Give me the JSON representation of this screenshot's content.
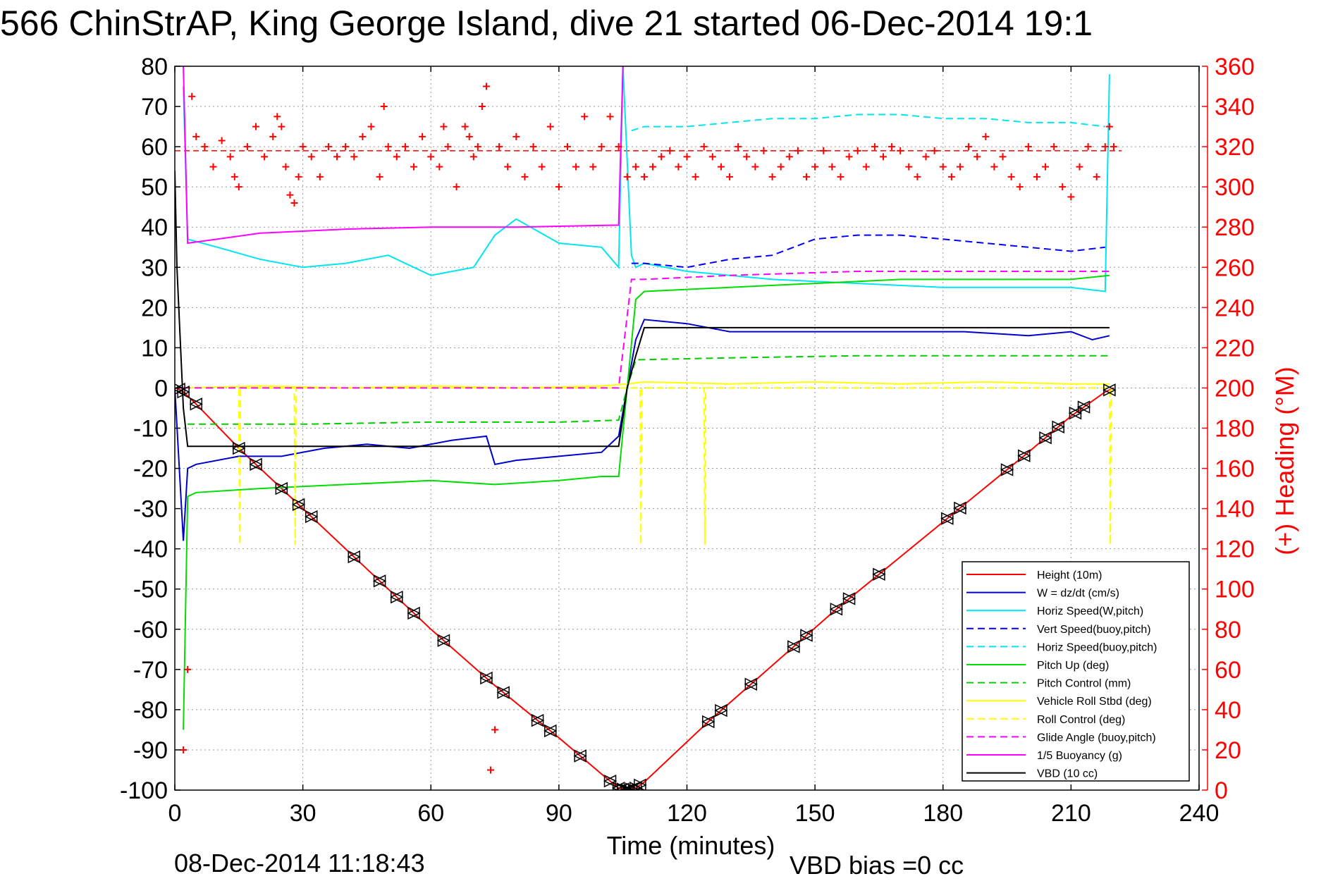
{
  "title": "566 ChinStrAP, King George Island, dive 21 started 06-Dec-2014 19:1",
  "footer_left": "08-Dec-2014 11:18:43",
  "footer_right": "VBD bias =0 cc",
  "chart_data": {
    "type": "line",
    "xlabel": "Time (minutes)",
    "ylabel": "",
    "y2label": "(+) Heading (°M)",
    "xlim": [
      0,
      240
    ],
    "ylim": [
      -100,
      80
    ],
    "y2lim": [
      0,
      360
    ],
    "xticks": [
      0,
      30,
      60,
      90,
      120,
      150,
      180,
      210,
      240
    ],
    "yticks": [
      -100,
      -90,
      -80,
      -70,
      -60,
      -50,
      -40,
      -30,
      -20,
      -10,
      0,
      10,
      20,
      30,
      40,
      50,
      60,
      70,
      80
    ],
    "y2ticks": [
      0,
      20,
      40,
      60,
      80,
      100,
      120,
      140,
      160,
      180,
      200,
      220,
      240,
      260,
      280,
      300,
      320,
      340,
      360
    ],
    "grid": true,
    "legend_position": "bottom-right",
    "colors": {
      "height": "#ff0000",
      "w": "#0000cc",
      "horiz_speed": "#00e5ee",
      "vert_speed_buoy": "#0000ff",
      "horiz_speed_buoy": "#00e5ee",
      "pitch_up": "#00dd00",
      "pitch_control": "#00cc00",
      "roll": "#ffff00",
      "roll_control": "#ffff00",
      "glide_angle": "#ff00ff",
      "buoyancy": "#ff00ff",
      "vbd": "#000000",
      "heading": "#ff0000",
      "axis_right": "#ff0000"
    },
    "series": [
      {
        "name": "Height (10m)",
        "style": "solid",
        "color": "#ff0000",
        "x": [
          0,
          1,
          2,
          5,
          15,
          30,
          45,
          60,
          75,
          90,
          100,
          104,
          106,
          108,
          110,
          125,
          140,
          155,
          170,
          185,
          200,
          210,
          218,
          220
        ],
        "y": [
          0,
          -0.3,
          -1,
          -4,
          -15,
          -30,
          -45,
          -60,
          -74,
          -87,
          -96,
          -99.5,
          -100,
          -99.5,
          -98,
          -83,
          -69,
          -55,
          -42,
          -29,
          -16,
          -7,
          -1,
          0
        ]
      },
      {
        "name": "W = dz/dt (cm/s)",
        "style": "solid",
        "color": "#0000cc",
        "x": [
          0,
          2,
          3,
          5,
          15,
          25,
          35,
          45,
          55,
          65,
          73,
          75,
          80,
          90,
          100,
          104,
          106,
          108,
          110,
          120,
          130,
          150,
          170,
          185,
          200,
          210,
          215,
          219
        ],
        "y": [
          0,
          -38,
          -20,
          -19,
          -17,
          -17,
          -15,
          -14,
          -15,
          -13,
          -12,
          -19,
          -18,
          -17,
          -16,
          -12,
          0,
          12,
          17,
          16,
          14,
          14,
          14,
          14,
          13,
          14,
          12,
          13
        ]
      },
      {
        "name": "Horiz Speed(W,pitch)",
        "style": "solid",
        "color": "#00e5ee",
        "x": [
          2,
          3,
          10,
          20,
          30,
          40,
          50,
          60,
          70,
          75,
          80,
          90,
          100,
          104,
          105,
          107,
          108,
          110,
          120,
          140,
          160,
          180,
          200,
          210,
          218,
          219
        ],
        "y": [
          75,
          37,
          35,
          32,
          30,
          31,
          33,
          28,
          30,
          38,
          42,
          36,
          35,
          30,
          80,
          33,
          30,
          31,
          29,
          27,
          26,
          25,
          25,
          25,
          24,
          78
        ]
      },
      {
        "name": "Vert Speed(buoy,pitch)",
        "style": "dashed",
        "color": "#0000ff",
        "x": [
          107,
          110,
          120,
          130,
          140,
          150,
          160,
          170,
          180,
          190,
          200,
          210,
          218
        ],
        "y": [
          31,
          31,
          30,
          32,
          33,
          37,
          38,
          38,
          37,
          36,
          35,
          34,
          35
        ]
      },
      {
        "name": "Horiz Speed(buoy,pitch)",
        "style": "dashed",
        "color": "#00e5ee",
        "x": [
          107,
          110,
          120,
          130,
          140,
          150,
          160,
          170,
          180,
          190,
          200,
          210,
          218
        ],
        "y": [
          64,
          65,
          65,
          66,
          67,
          67,
          68,
          68,
          67,
          67,
          66,
          66,
          65
        ]
      },
      {
        "name": "Pitch Up (deg)",
        "style": "solid",
        "color": "#00dd00",
        "x": [
          2,
          3,
          5,
          20,
          40,
          60,
          75,
          90,
          100,
          104,
          106,
          108,
          110,
          130,
          150,
          170,
          190,
          210,
          219
        ],
        "y": [
          -85,
          -27,
          -26,
          -25,
          -24,
          -23,
          -24,
          -23,
          -22,
          -22,
          0,
          22,
          24,
          25,
          26,
          27,
          27,
          27,
          28
        ]
      },
      {
        "name": "Pitch Control (mm)",
        "style": "dashed",
        "color": "#00cc00",
        "x": [
          3,
          30,
          60,
          90,
          104,
          106,
          108,
          130,
          160,
          190,
          219
        ],
        "y": [
          -9,
          -9,
          -8.5,
          -8.5,
          -8,
          0,
          7,
          7.5,
          8,
          8,
          8
        ]
      },
      {
        "name": "Vehicle Roll Stbd (deg)",
        "style": "solid",
        "color": "#ffff00",
        "x": [
          2,
          20,
          40,
          60,
          80,
          100,
          106,
          110,
          130,
          150,
          170,
          190,
          210,
          219
        ],
        "y": [
          0,
          0.5,
          0,
          0.5,
          0,
          0.5,
          1,
          1.5,
          1,
          1.5,
          1,
          1.5,
          1,
          1
        ]
      },
      {
        "name": "Roll Control (deg)",
        "style": "dashed",
        "color": "#ffff00",
        "x": [
          2,
          5,
          15,
          15.2,
          15.4,
          28,
          28.2,
          28.4,
          105,
          109,
          109.2,
          109.4,
          124,
          124.2,
          124.4,
          219,
          219.2,
          219.4
        ],
        "y": [
          0,
          0,
          0,
          -39,
          0,
          0,
          -39,
          0,
          0,
          0,
          -39,
          0,
          0,
          -39,
          0,
          0,
          -39,
          0
        ]
      },
      {
        "name": "Glide Angle (buoy,pitch)",
        "style": "dashed",
        "color": "#ff00ff",
        "x": [
          2,
          50,
          104,
          107,
          110,
          130,
          160,
          190,
          219
        ],
        "y": [
          0,
          0,
          0,
          27,
          27,
          28,
          29,
          29,
          29
        ]
      },
      {
        "name": "1/5 Buoyancy (g)",
        "style": "solid",
        "color": "#ff00ff",
        "x": [
          2,
          3,
          10,
          20,
          40,
          60,
          80,
          104,
          105
        ],
        "y": [
          80,
          36,
          37,
          38.5,
          39.5,
          40,
          40,
          40.5,
          80
        ]
      },
      {
        "name": "VBD (10 cc)",
        "style": "solid",
        "color": "#000000",
        "x": [
          0,
          0.5,
          2,
          3,
          104,
          106,
          108,
          110,
          219
        ],
        "y": [
          54,
          30,
          -5,
          -14.5,
          -14.5,
          0,
          8,
          15,
          15
        ]
      }
    ],
    "heading_series": {
      "name": "Heading",
      "axis": "right",
      "marker": "+",
      "color": "#ff0000",
      "mean_line": 318,
      "x": [
        2,
        3,
        4,
        5,
        7,
        9,
        11,
        13,
        14,
        15,
        17,
        19,
        21,
        23,
        24,
        25,
        26,
        27,
        28,
        29,
        30,
        32,
        34,
        36,
        38,
        40,
        42,
        44,
        46,
        48,
        49,
        50,
        52,
        54,
        56,
        58,
        60,
        62,
        63,
        64,
        66,
        68,
        69,
        70,
        71,
        72,
        73,
        74,
        75,
        76,
        78,
        80,
        82,
        84,
        86,
        88,
        90,
        92,
        94,
        96,
        98,
        100,
        102,
        104,
        106,
        108,
        110,
        112,
        114,
        116,
        118,
        120,
        122,
        124,
        126,
        128,
        130,
        132,
        134,
        136,
        138,
        140,
        142,
        144,
        146,
        148,
        150,
        152,
        154,
        156,
        158,
        160,
        162,
        164,
        166,
        168,
        170,
        172,
        174,
        176,
        178,
        180,
        182,
        184,
        186,
        188,
        190,
        192,
        194,
        196,
        198,
        200,
        202,
        204,
        206,
        208,
        210,
        212,
        214,
        216,
        218,
        219,
        220
      ],
      "y": [
        20,
        60,
        345,
        325,
        320,
        310,
        323,
        315,
        305,
        300,
        320,
        330,
        315,
        325,
        335,
        330,
        310,
        296,
        292,
        305,
        320,
        315,
        305,
        320,
        315,
        320,
        315,
        325,
        330,
        305,
        340,
        320,
        315,
        320,
        310,
        325,
        315,
        310,
        330,
        320,
        300,
        330,
        325,
        315,
        320,
        340,
        350,
        10,
        30,
        320,
        310,
        325,
        305,
        320,
        310,
        330,
        300,
        320,
        310,
        335,
        310,
        320,
        335,
        320,
        305,
        310,
        305,
        310,
        315,
        318,
        310,
        315,
        305,
        320,
        315,
        310,
        305,
        320,
        315,
        310,
        318,
        305,
        310,
        315,
        318,
        305,
        310,
        318,
        310,
        305,
        315,
        318,
        310,
        320,
        315,
        320,
        318,
        310,
        305,
        315,
        318,
        310,
        305,
        310,
        320,
        315,
        325,
        310,
        315,
        305,
        300,
        320,
        305,
        310,
        320,
        300,
        295,
        310,
        320,
        305,
        320,
        330,
        320
      ]
    },
    "depth_markers": {
      "marker": "triangles",
      "color": "#000000",
      "x": [
        1,
        2,
        5,
        15,
        19,
        25,
        29,
        32,
        42,
        48,
        52,
        56,
        63,
        73,
        77,
        85,
        88,
        95,
        102,
        104,
        105,
        106,
        107,
        108,
        109,
        125,
        128,
        135,
        145,
        148,
        155,
        158,
        165,
        181,
        184,
        195,
        199,
        204,
        207,
        211,
        213,
        219
      ]
    }
  }
}
